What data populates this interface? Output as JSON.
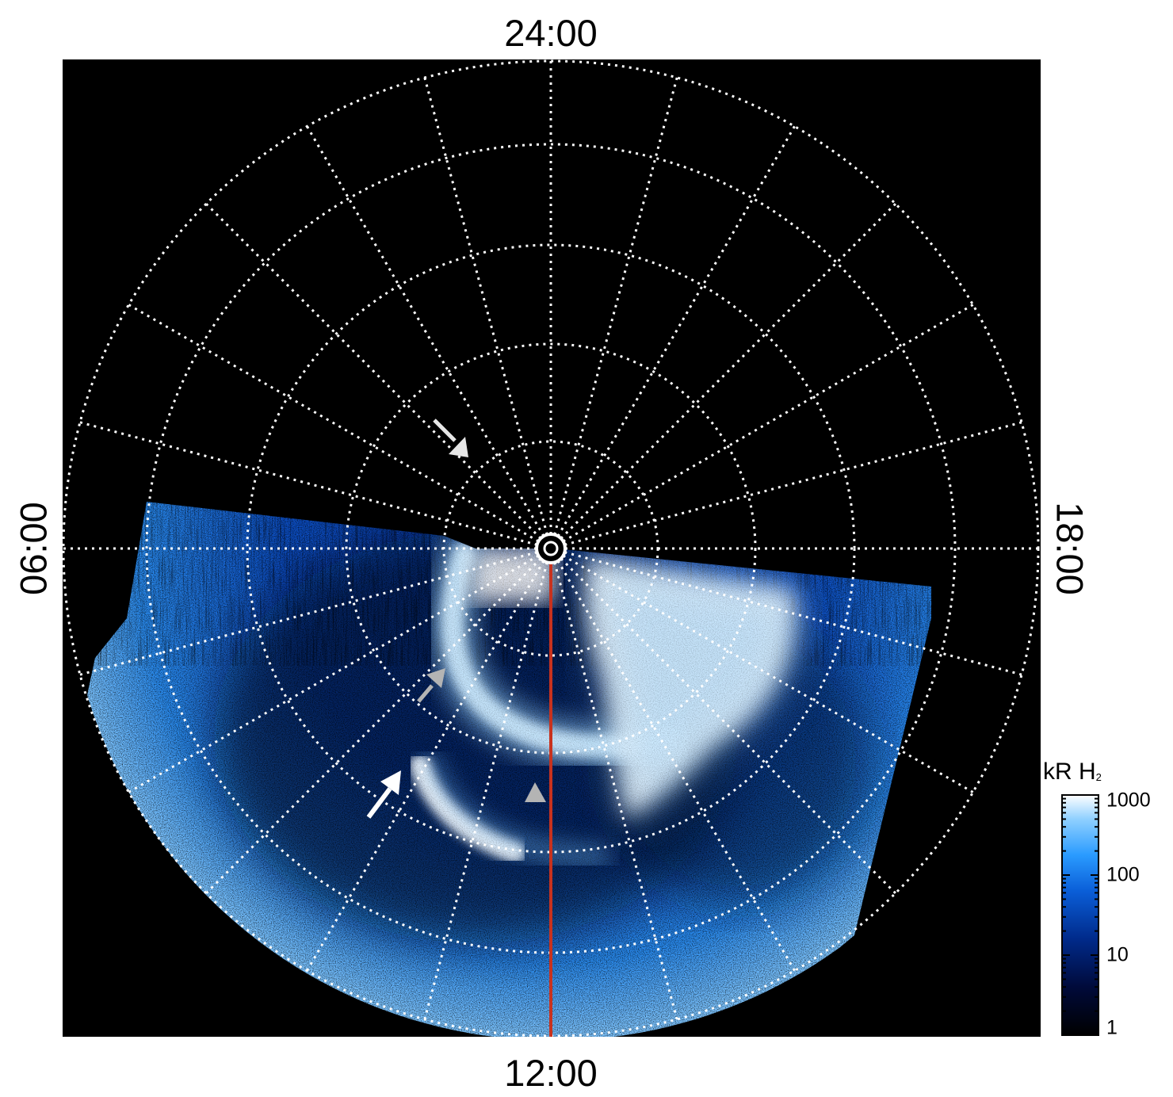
{
  "local_time_labels": {
    "top": "24:00",
    "bottom": "12:00",
    "left": "06:00",
    "right": "18:00"
  },
  "colorbar": {
    "title_prefix": "kR H",
    "title_subscript": "2",
    "tick_labels": [
      "1000",
      "100",
      "10",
      "1"
    ],
    "colors": [
      "#000000",
      "#000a3a",
      "#002a8a",
      "#0a5ed8",
      "#2a9bff",
      "#8fd0ff",
      "#ffffff"
    ]
  },
  "colors": {
    "background": "#000000",
    "grid": "#ffffff",
    "meridian": "#c8321e",
    "arrow_white": "#ffffff",
    "arrow_gray": "#b4b4b4"
  }
}
